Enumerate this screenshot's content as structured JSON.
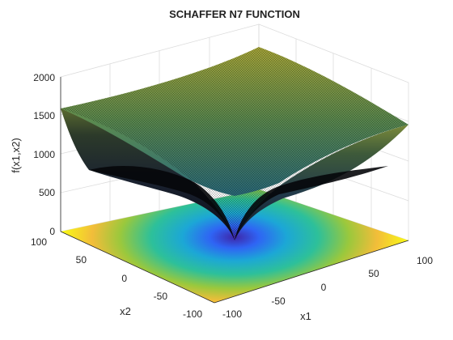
{
  "chart_data": {
    "type": "surface",
    "title": "SCHAFFER N7 FUNCTION",
    "xlabel": "x1",
    "ylabel": "x2",
    "zlabel": "f(x1,x2)",
    "xlim": [
      -100,
      100
    ],
    "ylim": [
      -100,
      100
    ],
    "zlim": [
      0,
      2000
    ],
    "xticks": [
      "-100",
      "-50",
      "0",
      "50",
      "100"
    ],
    "yticks": [
      "-100",
      "-50",
      "0",
      "50",
      "100"
    ],
    "zticks": [
      "0",
      "500",
      "1000",
      "1500",
      "2000"
    ],
    "surface_values": {
      "x1=-100,x2=100": 1570,
      "x1=100,x2=100": 1920,
      "x1=100,x2=-100": 1570,
      "x1=-100,x2=-100": 1100,
      "x1=0,x2=0": 0
    },
    "colormap": "parula",
    "grid": true,
    "contour_projection": "filled floor map"
  }
}
